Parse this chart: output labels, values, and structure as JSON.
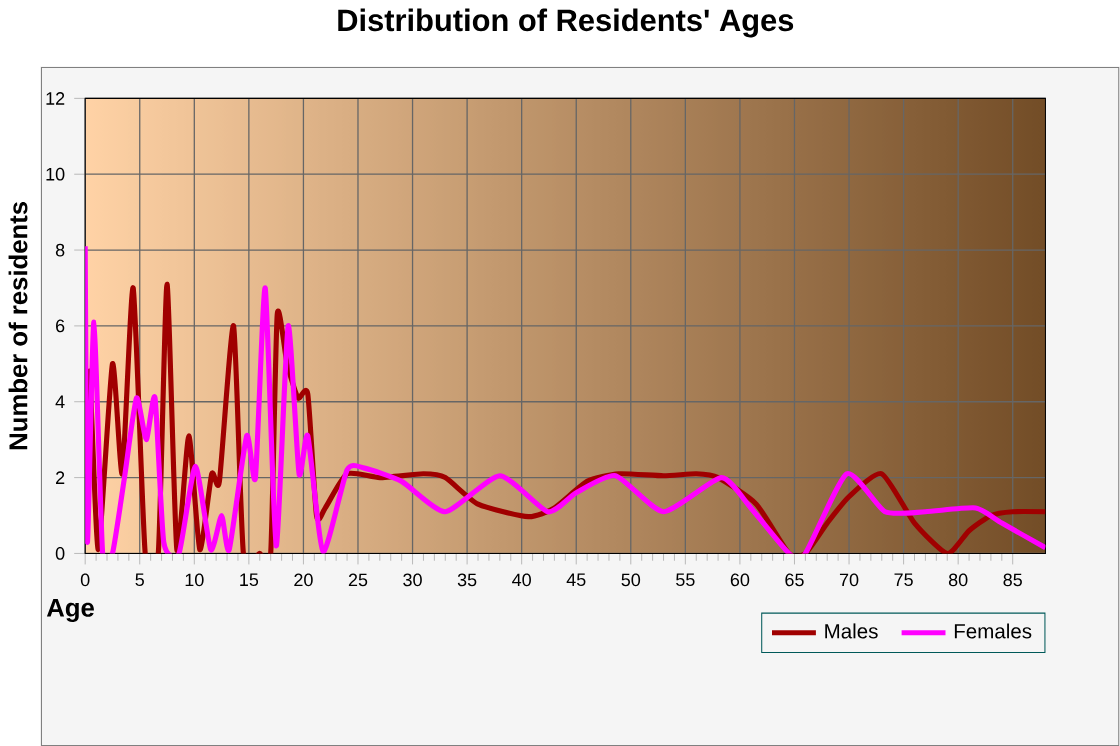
{
  "chart_data": {
    "type": "line",
    "title": "Distribution of Residents' Ages",
    "xlabel": "Age",
    "ylabel": "Number of residents",
    "xlim": [
      0,
      88
    ],
    "ylim": [
      0,
      12
    ],
    "xticks": [
      0,
      5,
      10,
      15,
      20,
      25,
      30,
      35,
      40,
      45,
      50,
      55,
      60,
      65,
      70,
      75,
      80,
      85
    ],
    "yticks": [
      0,
      2,
      4,
      6,
      8,
      10,
      12
    ],
    "grid": true,
    "legend": "bottom right",
    "series": [
      {
        "name": "Males",
        "color": "#a00000",
        "x": [
          0,
          0.4,
          1.2,
          2.5,
          3.4,
          4.4,
          5.5,
          6.7,
          7.5,
          8.4,
          9.5,
          10.5,
          11.6,
          12.3,
          13.6,
          14.5,
          16,
          17,
          17.6,
          18.5,
          19.5,
          20.4,
          21.2,
          22,
          24,
          27,
          31,
          33,
          36,
          40.6,
          43,
          46,
          48.9,
          53,
          56,
          58,
          61.5,
          64.5,
          66,
          68,
          70,
          73,
          76,
          79,
          81,
          83,
          85,
          88
        ],
        "values": [
          2.1,
          4.8,
          0.1,
          5.0,
          2.1,
          7.0,
          0,
          0,
          7.1,
          0.1,
          3.1,
          0.1,
          2.1,
          1.9,
          6.0,
          0,
          0,
          0,
          6.3,
          5.0,
          4.1,
          4.2,
          1.0,
          1.2,
          2.1,
          2.0,
          2.1,
          2.0,
          1.3,
          0.97,
          1.2,
          1.9,
          2.1,
          2.05,
          2.1,
          2.0,
          1.3,
          0,
          0,
          0.8,
          1.5,
          2.1,
          0.8,
          0,
          0.6,
          1.0,
          1.1,
          1.1
        ]
      },
      {
        "name": "Females",
        "color": "#ff00ff",
        "x": [
          0,
          0.2,
          0.8,
          1.6,
          2.5,
          3.6,
          4.7,
          5.6,
          6.4,
          7.2,
          8.6,
          10.1,
          11.5,
          12.5,
          13.2,
          14.8,
          15.6,
          16.5,
          17.5,
          18.6,
          19.6,
          20.4,
          21.8,
          24,
          25.6,
          29,
          33,
          38,
          42.4,
          45,
          48.6,
          53,
          58.3,
          61,
          64.5,
          66,
          69.8,
          73.3,
          77,
          81.6,
          84,
          88
        ],
        "values": [
          8.1,
          0.3,
          6.1,
          0,
          0,
          2.0,
          4.1,
          3.0,
          4.1,
          0.3,
          0,
          2.3,
          0.1,
          1.0,
          0.1,
          3.1,
          2.0,
          7.0,
          0.2,
          6.0,
          2.1,
          3.1,
          0.05,
          2.2,
          2.25,
          1.9,
          1.1,
          2.05,
          1.1,
          1.6,
          2.05,
          1.1,
          2.0,
          1.2,
          0,
          0,
          2.1,
          1.1,
          1.1,
          1.2,
          0.8,
          0.15
        ]
      }
    ]
  }
}
